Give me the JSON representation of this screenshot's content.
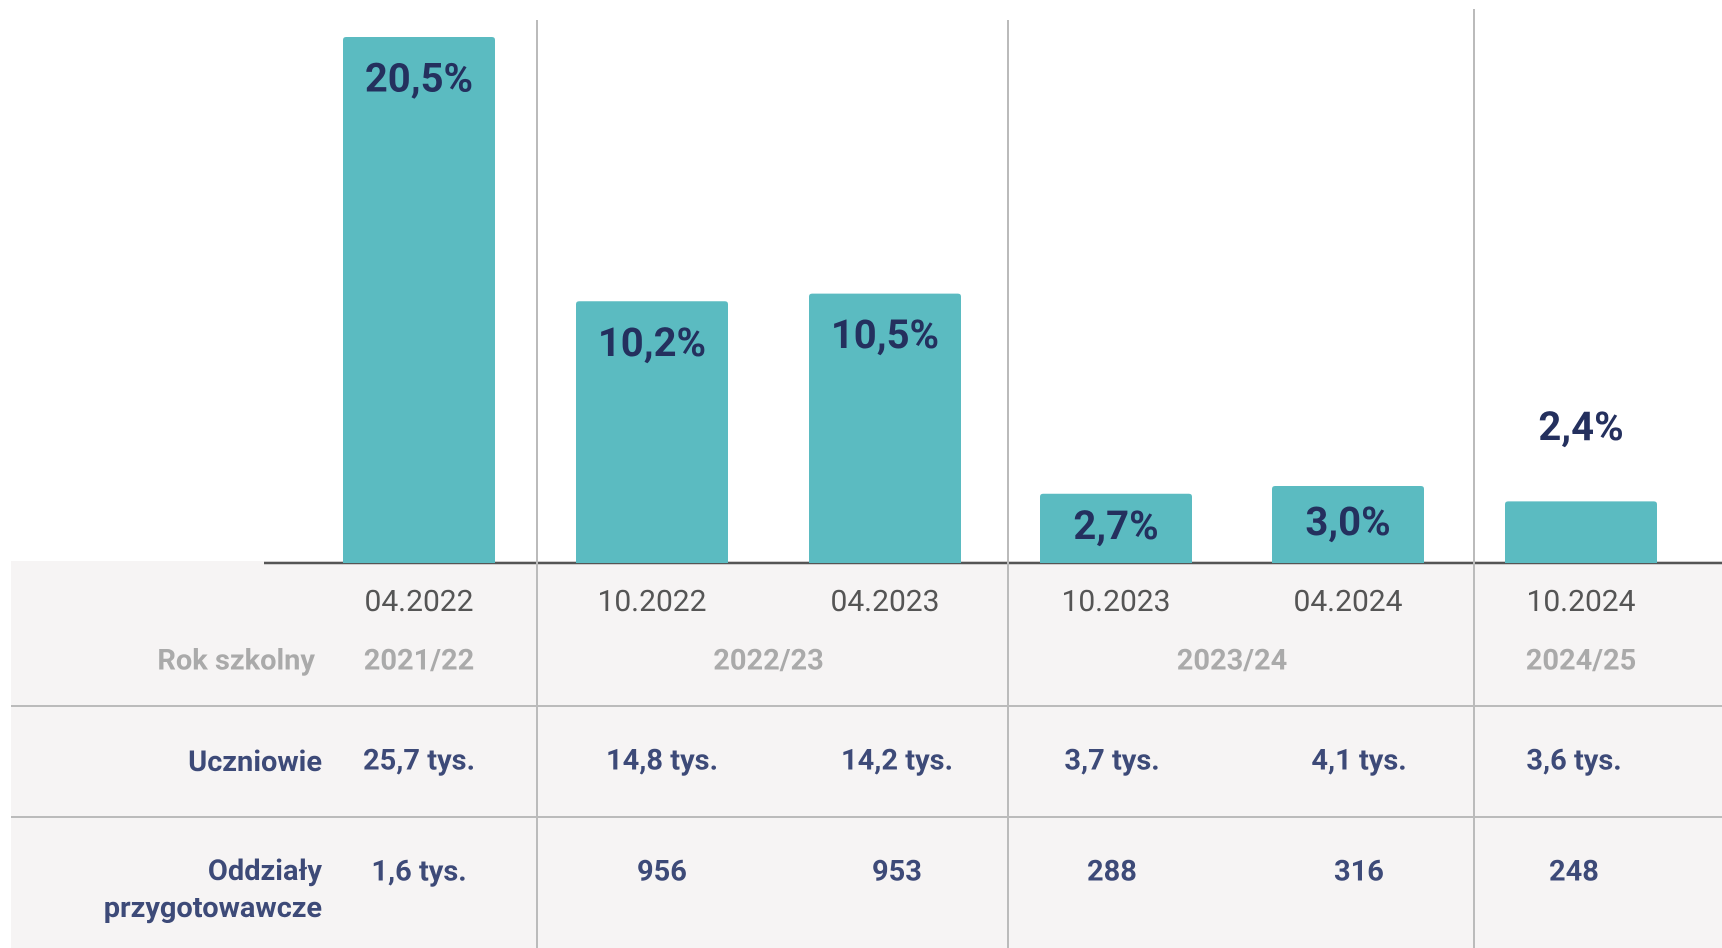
{
  "chart_data": {
    "type": "bar",
    "categories": [
      "04.2022",
      "10.2022",
      "04.2023",
      "10.2023",
      "04.2024",
      "10.2024"
    ],
    "values": [
      20.5,
      10.2,
      10.5,
      2.7,
      3.0,
      2.4
    ],
    "value_labels": [
      "20,5%",
      "10,2%",
      "10,5%",
      "2,7%",
      "3,0%",
      "2,4%"
    ],
    "color": "#5bbbc1"
  },
  "table": {
    "year_header": "Rok szkolny",
    "years": [
      "2021/22",
      "2022/23",
      "2023/24",
      "2024/25"
    ],
    "rows": [
      {
        "label": "Uczniowie",
        "cells": [
          "25,7 tys.",
          "14,8 tys.",
          "14,2 tys.",
          "3,7 tys.",
          "4,1 tys.",
          "3,6 tys."
        ]
      },
      {
        "label": "Oddziały przygotowawcze",
        "cells": [
          "1,6 tys.",
          "956",
          "953",
          "288",
          "316",
          "248"
        ]
      }
    ]
  }
}
